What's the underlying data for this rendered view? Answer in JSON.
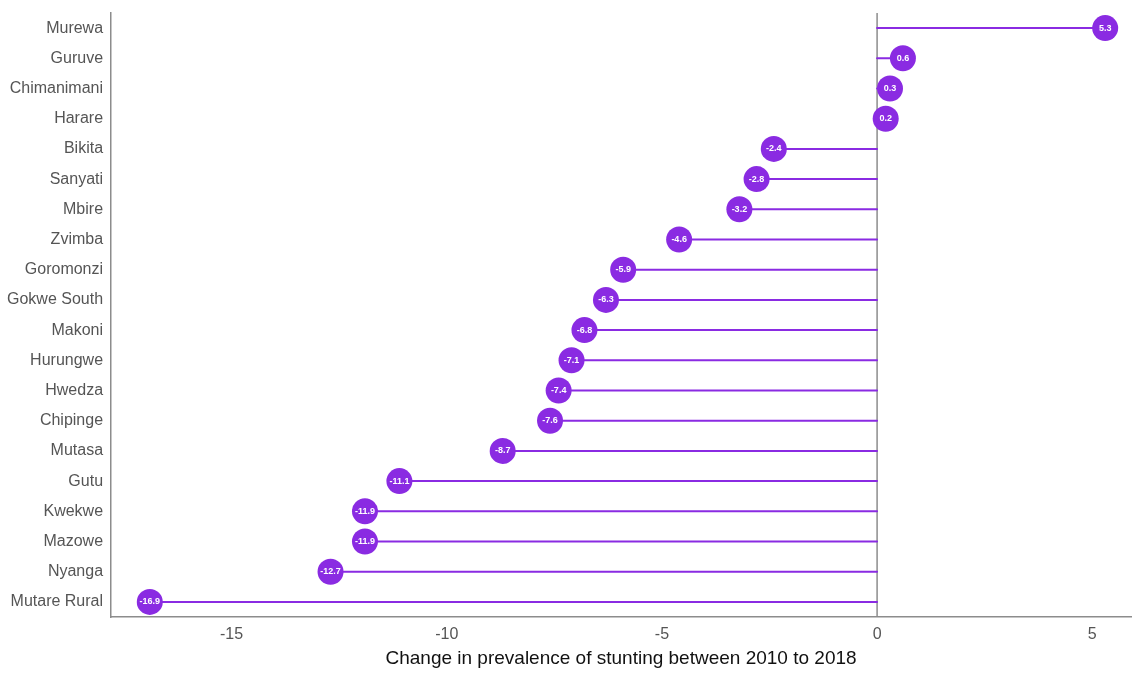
{
  "chart_data": {
    "type": "lollipop",
    "orientation": "horizontal",
    "xlabel": "Change in prevalence of stunting between 2010 to 2018",
    "categories": [
      "Murewa",
      "Guruve",
      "Chimanimani",
      "Harare",
      "Bikita",
      "Sanyati",
      "Mbire",
      "Zvimba",
      "Goromonzi",
      "Gokwe South",
      "Makoni",
      "Hurungwe",
      "Hwedza",
      "Chipinge",
      "Mutasa",
      "Gutu",
      "Kwekwe",
      "Mazowe",
      "Nyanga",
      "Mutare Rural"
    ],
    "values": [
      5.3,
      0.6,
      0.3,
      0.2,
      -2.4,
      -2.8,
      -3.2,
      -4.6,
      -5.9,
      -6.3,
      -6.8,
      -7.1,
      -7.4,
      -7.6,
      -8.7,
      -11.1,
      -11.9,
      -11.9,
      -12.7,
      -16.9
    ],
    "color": "#8a2be2",
    "xlim": [
      -17.8,
      5.9
    ],
    "xticks": [
      -15,
      -10,
      -5,
      0,
      5
    ],
    "ref_lines": [
      {
        "axis": "x",
        "value": 0,
        "color": "#8c8c8c"
      }
    ],
    "data_labels": true,
    "grid": false,
    "legend": false,
    "marker": "circle"
  }
}
